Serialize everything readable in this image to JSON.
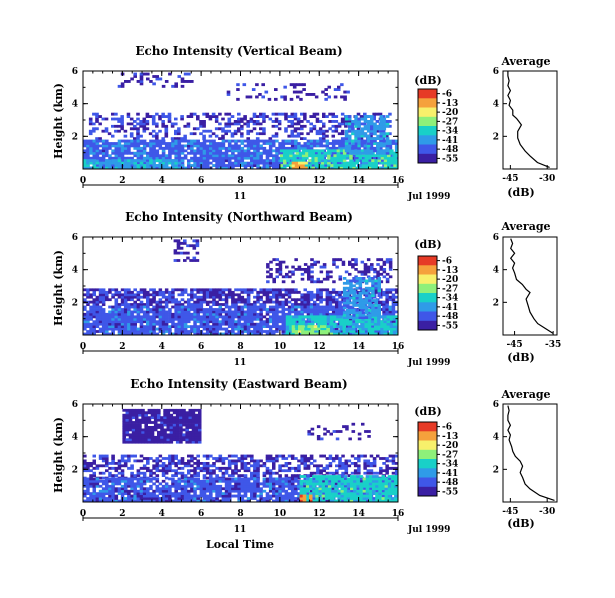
{
  "colors": {
    "colormap": [
      "#3a1fa3",
      "#3f57e8",
      "#2f9be8",
      "#19d0c8",
      "#8ef07a",
      "#f7f06b",
      "#f5a13c",
      "#e63a26"
    ],
    "axis": "#000000",
    "profile_line": "#000000",
    "background": "#ffffff"
  },
  "figure": {
    "xlabel": "Local Time",
    "date_label": "Jul 1999",
    "day_label": "11",
    "ylabel": "Height (km)",
    "cbar_unit": "(dB)",
    "profile_title": "Average",
    "profile_xlabel": "(dB)"
  },
  "chart_data": [
    {
      "type": "heatmap",
      "title": "Echo Intensity (Vertical Beam)",
      "xlabel": "Local Time",
      "ylabel": "Height (km)",
      "xlim": [
        0,
        16
      ],
      "ylim": [
        0,
        6
      ],
      "xticks": [
        "0",
        "2",
        "4",
        "6",
        "8",
        "10",
        "12",
        "14",
        "16"
      ],
      "yticks": [
        "2",
        "4",
        "6"
      ],
      "colorbar": {
        "label": "(dB)",
        "ticks": [
          "-6",
          "-13",
          "-20",
          "-27",
          "-34",
          "-41",
          "-48",
          "-55"
        ],
        "range": [
          -55,
          -6
        ]
      },
      "blocks": [
        {
          "t": [
            1.6,
            5.6
          ],
          "h": [
            5.0,
            5.9
          ],
          "db": -50,
          "density": 0.3
        },
        {
          "t": [
            7.3,
            13.4
          ],
          "h": [
            4.2,
            5.2
          ],
          "db": -51,
          "density": 0.22
        },
        {
          "t": [
            0.3,
            15.6
          ],
          "h": [
            1.8,
            3.4
          ],
          "db": -49,
          "density": 0.38
        },
        {
          "t": [
            0.0,
            16.0
          ],
          "h": [
            0.0,
            1.8
          ],
          "db": -45,
          "density": 0.85
        },
        {
          "t": [
            0.0,
            5.0
          ],
          "h": [
            0.0,
            0.6
          ],
          "db": -37,
          "density": 0.7
        },
        {
          "t": [
            10.0,
            16.0
          ],
          "h": [
            0.0,
            1.1
          ],
          "db": -33,
          "density": 0.85
        },
        {
          "t": [
            13.3,
            15.4
          ],
          "h": [
            0.9,
            3.2
          ],
          "db": -40,
          "density": 0.7
        },
        {
          "t": [
            10.6,
            11.4
          ],
          "h": [
            0.0,
            0.35
          ],
          "db": -18,
          "density": 0.8
        }
      ],
      "profile": {
        "title": "Average",
        "xlabel": "(dB)",
        "xticks": [
          "-45",
          "-30"
        ],
        "xlim": [
          -48,
          -26
        ],
        "yticks": [
          "2",
          "4",
          "6"
        ],
        "ylim": [
          0,
          6
        ],
        "points": [
          [
            -29,
            0.1
          ],
          [
            -34,
            0.4
          ],
          [
            -37,
            0.8
          ],
          [
            -39,
            1.1
          ],
          [
            -41,
            1.5
          ],
          [
            -42,
            1.9
          ],
          [
            -42,
            2.3
          ],
          [
            -40.5,
            2.7
          ],
          [
            -41.5,
            2.9
          ],
          [
            -42.5,
            3.1
          ],
          [
            -44,
            3.3
          ],
          [
            -44,
            3.6
          ],
          [
            -45.5,
            3.9
          ],
          [
            -45,
            4.2
          ],
          [
            -46,
            4.5
          ],
          [
            -45,
            4.8
          ],
          [
            -46,
            5.1
          ],
          [
            -45.5,
            5.4
          ],
          [
            -46,
            5.7
          ],
          [
            -46,
            6.0
          ]
        ]
      }
    },
    {
      "type": "heatmap",
      "title": "Echo Intensity (Northward Beam)",
      "xlabel": "Local Time",
      "ylabel": "Height (km)",
      "xlim": [
        0,
        16
      ],
      "ylim": [
        0,
        6
      ],
      "xticks": [
        "0",
        "2",
        "4",
        "6",
        "8",
        "10",
        "12",
        "14",
        "16"
      ],
      "yticks": [
        "2",
        "4",
        "6"
      ],
      "colorbar": {
        "label": "(dB)",
        "ticks": [
          "-6",
          "-13",
          "-20",
          "-27",
          "-34",
          "-41",
          "-48",
          "-55"
        ],
        "range": [
          -55,
          -6
        ]
      },
      "blocks": [
        {
          "t": [
            4.6,
            5.8
          ],
          "h": [
            4.5,
            5.8
          ],
          "db": -51,
          "density": 0.4
        },
        {
          "t": [
            9.3,
            15.6
          ],
          "h": [
            3.2,
            4.6
          ],
          "db": -51,
          "density": 0.35
        },
        {
          "t": [
            0.0,
            16.0
          ],
          "h": [
            1.8,
            2.8
          ],
          "db": -49,
          "density": 0.7
        },
        {
          "t": [
            0.0,
            16.0
          ],
          "h": [
            0.0,
            1.8
          ],
          "db": -46,
          "density": 0.88
        },
        {
          "t": [
            10.3,
            16.0
          ],
          "h": [
            0.0,
            1.2
          ],
          "db": -35,
          "density": 0.85
        },
        {
          "t": [
            13.2,
            15.0
          ],
          "h": [
            1.0,
            3.5
          ],
          "db": -40,
          "density": 0.75
        },
        {
          "t": [
            10.6,
            12.6
          ],
          "h": [
            0.0,
            0.5
          ],
          "db": -28,
          "density": 0.8
        }
      ],
      "profile": {
        "title": "Average",
        "xlabel": "(dB)",
        "xticks": [
          "-45",
          "-35"
        ],
        "xlim": [
          -48,
          -34
        ],
        "yticks": [
          "2",
          "4",
          "6"
        ],
        "ylim": [
          0,
          6
        ],
        "points": [
          [
            -35,
            0.1
          ],
          [
            -37,
            0.4
          ],
          [
            -39,
            0.7
          ],
          [
            -40,
            1.0
          ],
          [
            -41,
            1.4
          ],
          [
            -41.5,
            1.8
          ],
          [
            -42,
            2.2
          ],
          [
            -41,
            2.6
          ],
          [
            -42,
            2.8
          ],
          [
            -43,
            3.1
          ],
          [
            -44.5,
            3.4
          ],
          [
            -45,
            3.8
          ],
          [
            -45.5,
            4.1
          ],
          [
            -45,
            4.4
          ],
          [
            -46,
            4.7
          ],
          [
            -45,
            5.0
          ],
          [
            -46,
            5.3
          ],
          [
            -45.5,
            5.6
          ],
          [
            -46,
            5.9
          ]
        ]
      }
    },
    {
      "type": "heatmap",
      "title": "Echo Intensity (Eastward Beam)",
      "xlabel": "Local Time",
      "ylabel": "Height (km)",
      "xlim": [
        0,
        16
      ],
      "ylim": [
        0,
        6
      ],
      "xticks": [
        "0",
        "2",
        "4",
        "6",
        "8",
        "10",
        "12",
        "14",
        "16"
      ],
      "yticks": [
        "2",
        "4",
        "6"
      ],
      "colorbar": {
        "label": "(dB)",
        "ticks": [
          "-6",
          "-13",
          "-20",
          "-27",
          "-34",
          "-41",
          "-48",
          "-55"
        ],
        "range": [
          -55,
          -6
        ]
      },
      "blocks": [
        {
          "t": [
            2.0,
            6.0
          ],
          "h": [
            3.6,
            5.6
          ],
          "db": -52,
          "density": 0.92
        },
        {
          "t": [
            11.4,
            14.6
          ],
          "h": [
            3.8,
            4.8
          ],
          "db": -51,
          "density": 0.2
        },
        {
          "t": [
            0.0,
            16.0
          ],
          "h": [
            1.4,
            2.8
          ],
          "db": -49,
          "density": 0.55
        },
        {
          "t": [
            0.0,
            16.0
          ],
          "h": [
            0.0,
            1.4
          ],
          "db": -46,
          "density": 0.85
        },
        {
          "t": [
            11.0,
            16.0
          ],
          "h": [
            0.0,
            1.6
          ],
          "db": -34,
          "density": 0.85
        },
        {
          "t": [
            11.0,
            11.6
          ],
          "h": [
            0.0,
            0.35
          ],
          "db": -14,
          "density": 0.9
        }
      ],
      "profile": {
        "title": "Average",
        "xlabel": "(dB)",
        "xticks": [
          "-45",
          "-30"
        ],
        "xlim": [
          -48,
          -26
        ],
        "yticks": [
          "2",
          "4",
          "6"
        ],
        "ylim": [
          0,
          6
        ],
        "points": [
          [
            -27,
            0.1
          ],
          [
            -33,
            0.4
          ],
          [
            -37,
            0.8
          ],
          [
            -39,
            1.1
          ],
          [
            -40,
            1.5
          ],
          [
            -41,
            1.8
          ],
          [
            -40,
            2.2
          ],
          [
            -41,
            2.5
          ],
          [
            -43,
            2.8
          ],
          [
            -44,
            3.1
          ],
          [
            -44.5,
            3.4
          ],
          [
            -45.5,
            3.8
          ],
          [
            -45,
            4.1
          ],
          [
            -46,
            4.4
          ],
          [
            -45,
            4.7
          ],
          [
            -46,
            5.0
          ],
          [
            -46,
            5.3
          ],
          [
            -45.5,
            5.6
          ],
          [
            -46,
            5.9
          ]
        ]
      }
    }
  ]
}
